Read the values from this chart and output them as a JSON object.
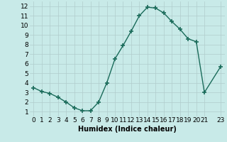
{
  "x": [
    0,
    1,
    2,
    3,
    4,
    5,
    6,
    7,
    8,
    9,
    10,
    11,
    12,
    13,
    14,
    15,
    16,
    17,
    18,
    19,
    20,
    21,
    23
  ],
  "y": [
    3.5,
    3.1,
    2.9,
    2.5,
    2.0,
    1.4,
    1.1,
    1.1,
    2.0,
    4.0,
    6.5,
    7.9,
    9.4,
    11.0,
    11.9,
    11.8,
    11.3,
    10.4,
    9.6,
    8.6,
    8.3,
    3.0,
    5.7
  ],
  "line_color": "#1a6b5a",
  "marker": "+",
  "marker_size": 4,
  "marker_lw": 1.2,
  "bg_color": "#c8eae8",
  "grid_color": "#b0cccc",
  "xlabel": "Humidex (Indice chaleur)",
  "xlim": [
    -0.5,
    23.5
  ],
  "ylim": [
    0.5,
    12.5
  ],
  "xticks": [
    0,
    1,
    2,
    3,
    4,
    5,
    6,
    7,
    8,
    9,
    10,
    11,
    12,
    13,
    14,
    15,
    16,
    17,
    18,
    19,
    20,
    21,
    23
  ],
  "yticks": [
    1,
    2,
    3,
    4,
    5,
    6,
    7,
    8,
    9,
    10,
    11,
    12
  ],
  "xlabel_fontsize": 7,
  "tick_fontsize": 6.5
}
